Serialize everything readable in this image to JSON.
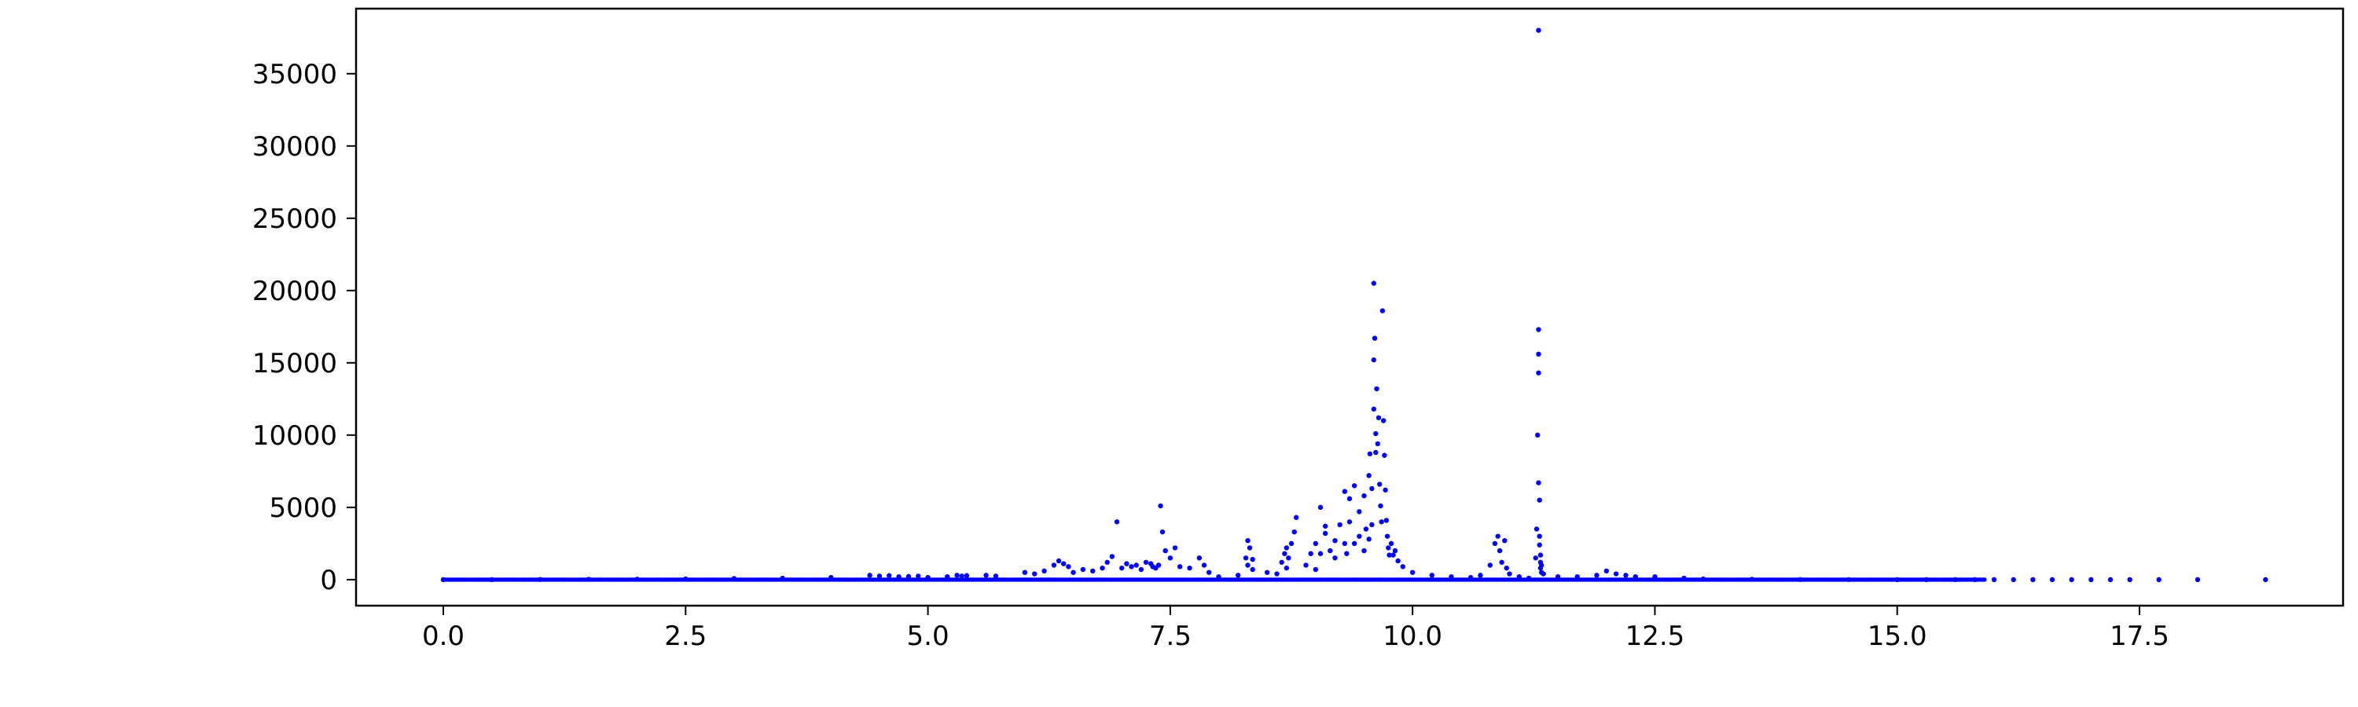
{
  "chart_data": {
    "type": "scatter",
    "title": "",
    "xlabel": "",
    "ylabel": "",
    "xlim": [
      -0.9,
      19.6
    ],
    "ylim": [
      -1800,
      39500
    ],
    "x_ticks": [
      0.0,
      2.5,
      5.0,
      7.5,
      10.0,
      12.5,
      15.0,
      17.5
    ],
    "x_tick_labels": [
      "0.0",
      "2.5",
      "5.0",
      "7.5",
      "10.0",
      "12.5",
      "15.0",
      "17.5"
    ],
    "y_ticks": [
      0,
      5000,
      10000,
      15000,
      20000,
      25000,
      30000,
      35000
    ],
    "y_tick_labels": [
      "0",
      "5000",
      "10000",
      "15000",
      "20000",
      "25000",
      "30000",
      "35000"
    ],
    "grid": false,
    "marker_color": "#0000ff",
    "series": [
      {
        "x": [
          0.0,
          0.5,
          1.0,
          1.5,
          2.0,
          2.5,
          3.0,
          3.5,
          4.0,
          4.4,
          4.5,
          4.6,
          4.7,
          4.8,
          4.9,
          5.0,
          5.2,
          5.3,
          5.35,
          5.4,
          5.6,
          5.7,
          6.0,
          6.1,
          6.2,
          6.3,
          6.35,
          6.4,
          6.45,
          6.5,
          6.6,
          6.7,
          6.8,
          6.85,
          6.9,
          6.95,
          7.0,
          7.05,
          7.1,
          7.15,
          7.2,
          7.25,
          7.3,
          7.32,
          7.35,
          7.38,
          7.4,
          7.42,
          7.45,
          7.5,
          7.55,
          7.6,
          7.7,
          7.8,
          7.85,
          7.9,
          8.0,
          8.2,
          8.28,
          8.3,
          8.3,
          8.32,
          8.35,
          8.35,
          8.5,
          8.6,
          8.65,
          8.68,
          8.7,
          8.7,
          8.72,
          8.75,
          8.78,
          8.8,
          8.9,
          8.95,
          9.0,
          9.0,
          9.05,
          9.05,
          9.1,
          9.1,
          9.15,
          9.2,
          9.2,
          9.25,
          9.3,
          9.3,
          9.32,
          9.35,
          9.35,
          9.4,
          9.4,
          9.45,
          9.45,
          9.5,
          9.5,
          9.52,
          9.55,
          9.55,
          9.56,
          9.58,
          9.58,
          9.6,
          9.6,
          9.6,
          9.61,
          9.62,
          9.62,
          9.63,
          9.64,
          9.65,
          9.66,
          9.67,
          9.68,
          9.69,
          9.7,
          9.71,
          9.72,
          9.73,
          9.74,
          9.75,
          9.76,
          9.78,
          9.8,
          9.82,
          9.85,
          9.9,
          10.0,
          10.2,
          10.4,
          10.6,
          10.7,
          10.8,
          10.85,
          10.88,
          10.9,
          10.92,
          10.95,
          10.97,
          11.0,
          11.1,
          11.2,
          11.27,
          11.28,
          11.29,
          11.3,
          11.3,
          11.3,
          11.3,
          11.3,
          11.31,
          11.31,
          11.31,
          11.32,
          11.32,
          11.32,
          11.33,
          11.33,
          11.35,
          11.5,
          11.7,
          11.9,
          12.0,
          12.1,
          12.2,
          12.3,
          12.5,
          12.8,
          13.0,
          13.5,
          14.0,
          14.5,
          15.0,
          15.3,
          15.6,
          15.8,
          16.0,
          16.2,
          16.4,
          16.6,
          16.8,
          17.0,
          17.2,
          17.4,
          17.7,
          18.1,
          18.8
        ],
        "y": [
          0,
          0,
          10,
          20,
          30,
          50,
          80,
          100,
          150,
          300,
          250,
          280,
          200,
          220,
          250,
          150,
          200,
          300,
          250,
          280,
          300,
          250,
          500,
          400,
          600,
          1000,
          1300,
          1100,
          900,
          500,
          700,
          600,
          800,
          1200,
          1600,
          4000,
          800,
          1100,
          900,
          1000,
          700,
          1200,
          1100,
          900,
          800,
          1000,
          5100,
          3300,
          2000,
          1500,
          2200,
          900,
          800,
          1500,
          1000,
          500,
          200,
          300,
          1500,
          2700,
          1000,
          2200,
          700,
          1400,
          500,
          400,
          1200,
          1800,
          2200,
          800,
          1500,
          2500,
          3300,
          4300,
          1000,
          1800,
          2500,
          700,
          5000,
          1800,
          3200,
          3700,
          2000,
          2700,
          1500,
          3800,
          2500,
          6100,
          1800,
          5600,
          4000,
          6500,
          2500,
          4700,
          3000,
          5800,
          2000,
          3500,
          7200,
          2800,
          8700,
          6300,
          3800,
          20500,
          15200,
          11800,
          16700,
          10100,
          8800,
          13200,
          9400,
          11200,
          6600,
          5100,
          4000,
          18600,
          11000,
          8600,
          6200,
          4100,
          3000,
          2200,
          1700,
          2500,
          1700,
          2000,
          1300,
          900,
          500,
          300,
          200,
          150,
          300,
          1000,
          2500,
          3000,
          2000,
          1200,
          2700,
          800,
          400,
          200,
          100,
          1500,
          3500,
          10000,
          38000,
          17300,
          15600,
          14300,
          6700,
          5500,
          3000,
          2400,
          1700,
          1200,
          800,
          500,
          1000,
          400,
          200,
          200,
          300,
          600,
          400,
          300,
          200,
          200,
          100,
          50,
          20,
          10,
          5,
          0,
          0,
          0,
          0,
          0,
          0,
          0,
          0,
          0,
          0,
          0,
          0,
          0,
          0,
          0
        ]
      }
    ]
  }
}
